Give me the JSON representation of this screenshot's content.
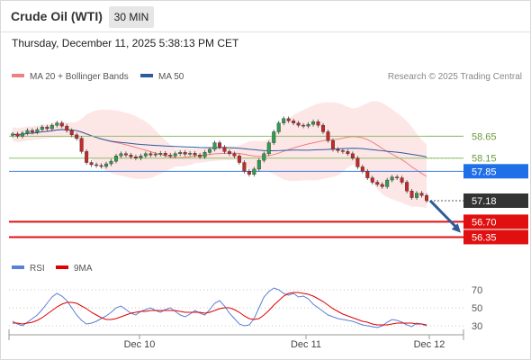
{
  "header": {
    "instrument": "Crude Oil (WTI)",
    "timeframe": "30 MIN",
    "datetime": "Thursday, December 11, 2025 5:38:13 PM CET"
  },
  "legend": {
    "ma20": "MA 20 + Bollinger Bands",
    "ma50": "MA 50",
    "ma20_color": "#f08080",
    "ma50_color": "#2e5b9e",
    "credit": "Research © 2025 Trading Central"
  },
  "rsi_legend": {
    "rsi": "RSI",
    "ma9": "9MA",
    "rsi_color": "#5b7fd6",
    "ma9_color": "#e00000"
  },
  "chart_data": [
    {
      "type": "candlestick",
      "title": "Crude Oil (WTI)",
      "y_range": [
        55.6,
        59.6
      ],
      "x_ticks": [
        "Dec 10",
        "Dec 11",
        "Dec 12"
      ],
      "candles_close": [
        58.7,
        58.65,
        58.72,
        58.78,
        58.74,
        58.8,
        58.86,
        58.82,
        58.9,
        58.95,
        58.88,
        58.78,
        58.68,
        58.6,
        58.3,
        58.05,
        58.0,
        57.98,
        57.96,
        58.02,
        58.08,
        58.2,
        58.25,
        58.22,
        58.18,
        58.15,
        58.2,
        58.25,
        58.22,
        58.24,
        58.26,
        58.22,
        58.2,
        58.25,
        58.28,
        58.24,
        58.26,
        58.22,
        58.18,
        58.28,
        58.35,
        58.5,
        58.4,
        58.3,
        58.25,
        58.2,
        58.05,
        57.85,
        57.78,
        57.9,
        58.1,
        58.25,
        58.5,
        58.75,
        58.95,
        59.05,
        59.0,
        58.95,
        58.9,
        58.88,
        58.92,
        58.98,
        58.9,
        58.75,
        58.55,
        58.35,
        58.32,
        58.3,
        58.25,
        58.15,
        57.95,
        57.85,
        57.7,
        57.6,
        57.55,
        57.5,
        57.65,
        57.72,
        57.7,
        57.6,
        57.4,
        57.25,
        57.35,
        57.3,
        57.18
      ],
      "price_labels": [
        {
          "value": 58.65,
          "label": "58.65",
          "role": "resistance"
        },
        {
          "value": 58.15,
          "label": "58.15",
          "role": "resistance"
        },
        {
          "value": 57.85,
          "label": "57.85",
          "role": "pivot"
        },
        {
          "value": 57.18,
          "label": "57.18",
          "role": "last price"
        },
        {
          "value": 56.7,
          "label": "56.70",
          "role": "support"
        },
        {
          "value": 56.35,
          "label": "56.35",
          "role": "support"
        }
      ],
      "target_arrow": {
        "from": 57.18,
        "to": 56.45
      },
      "series": [
        {
          "name": "MA 20 + Bollinger Bands",
          "color": "#f08080"
        },
        {
          "name": "MA 50",
          "color": "#2e5b9e"
        }
      ]
    },
    {
      "type": "line",
      "title": "RSI",
      "y_range": [
        20,
        80
      ],
      "y_ticks": [
        70,
        50,
        30
      ],
      "x_ticks": [
        "Dec 10",
        "Dec 11",
        "Dec 12"
      ],
      "series": [
        {
          "name": "RSI",
          "color": "#5b7fd6",
          "values": [
            35,
            32,
            30,
            34,
            38,
            42,
            48,
            55,
            62,
            66,
            63,
            58,
            50,
            42,
            36,
            32,
            33,
            35,
            38,
            41,
            45,
            50,
            52,
            48,
            44,
            42,
            46,
            48,
            50,
            47,
            45,
            48,
            50,
            46,
            42,
            40,
            43,
            47,
            44,
            42,
            48,
            55,
            58,
            52,
            44,
            38,
            32,
            30,
            31,
            38,
            50,
            62,
            68,
            72,
            70,
            66,
            64,
            66,
            62,
            63,
            60,
            54,
            50,
            46,
            42,
            40,
            38,
            37,
            36,
            35,
            33,
            31,
            30,
            29,
            28,
            30,
            34,
            37,
            36,
            34,
            31,
            29,
            33,
            32,
            30
          ]
        },
        {
          "name": "9MA",
          "color": "#e00000",
          "values": [
            33,
            33,
            32,
            33,
            34,
            36,
            39,
            43,
            47,
            51,
            54,
            56,
            56,
            55,
            52,
            49,
            45,
            42,
            39,
            37,
            37,
            38,
            40,
            42,
            44,
            45,
            46,
            46,
            47,
            47,
            47,
            47,
            47,
            47,
            46,
            45,
            45,
            45,
            45,
            44,
            45,
            47,
            49,
            50,
            50,
            48,
            45,
            41,
            38,
            37,
            38,
            42,
            47,
            53,
            58,
            63,
            66,
            67,
            67,
            66,
            65,
            63,
            60,
            57,
            53,
            49,
            46,
            43,
            41,
            39,
            37,
            35,
            34,
            32,
            31,
            31,
            31,
            32,
            33,
            33,
            33,
            33,
            32,
            32,
            31
          ]
        }
      ]
    }
  ]
}
